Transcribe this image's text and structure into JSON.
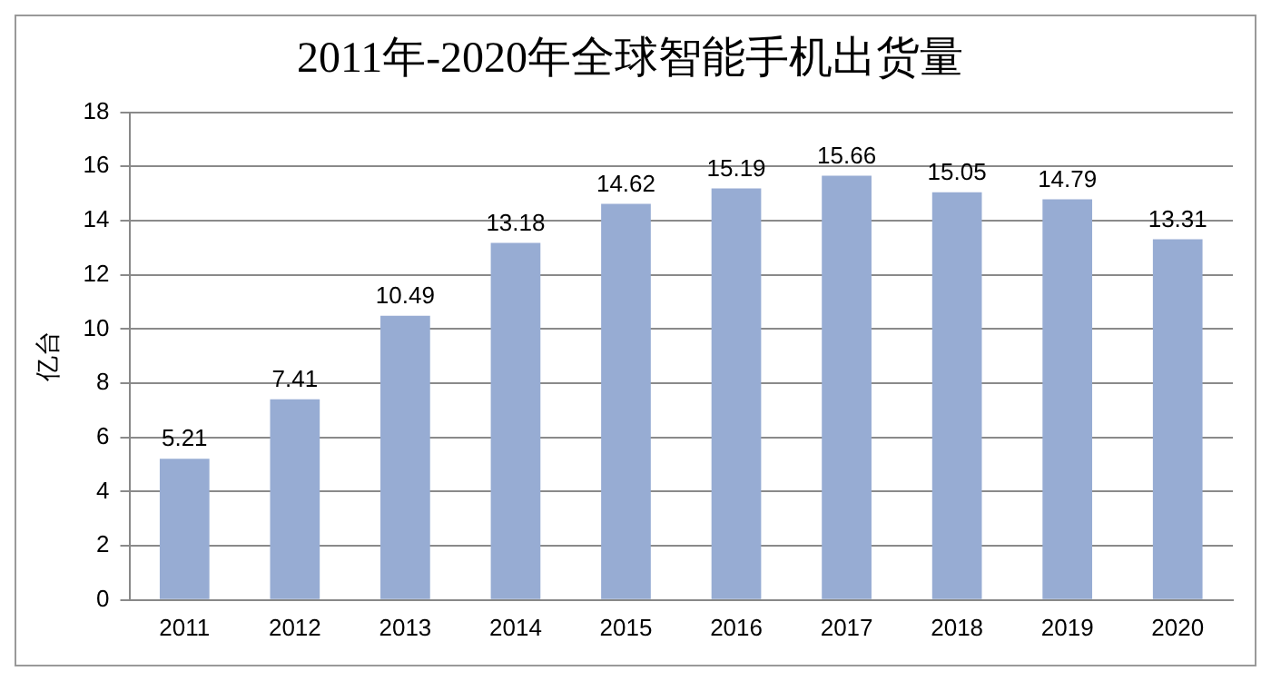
{
  "chart_data": {
    "type": "bar",
    "title": "2011年-2020年全球智能手机出货量",
    "ylabel": "亿台",
    "categories": [
      "2011",
      "2012",
      "2013",
      "2014",
      "2015",
      "2016",
      "2017",
      "2018",
      "2019",
      "2020"
    ],
    "values": [
      5.21,
      7.41,
      10.49,
      13.18,
      14.62,
      15.19,
      15.66,
      15.05,
      14.79,
      13.31
    ],
    "color": "#97acd3",
    "ylim": [
      0,
      18
    ],
    "yticks": [
      0,
      2,
      4,
      6,
      8,
      10,
      12,
      14,
      16,
      18
    ],
    "grid": "y",
    "data_labels": true
  }
}
